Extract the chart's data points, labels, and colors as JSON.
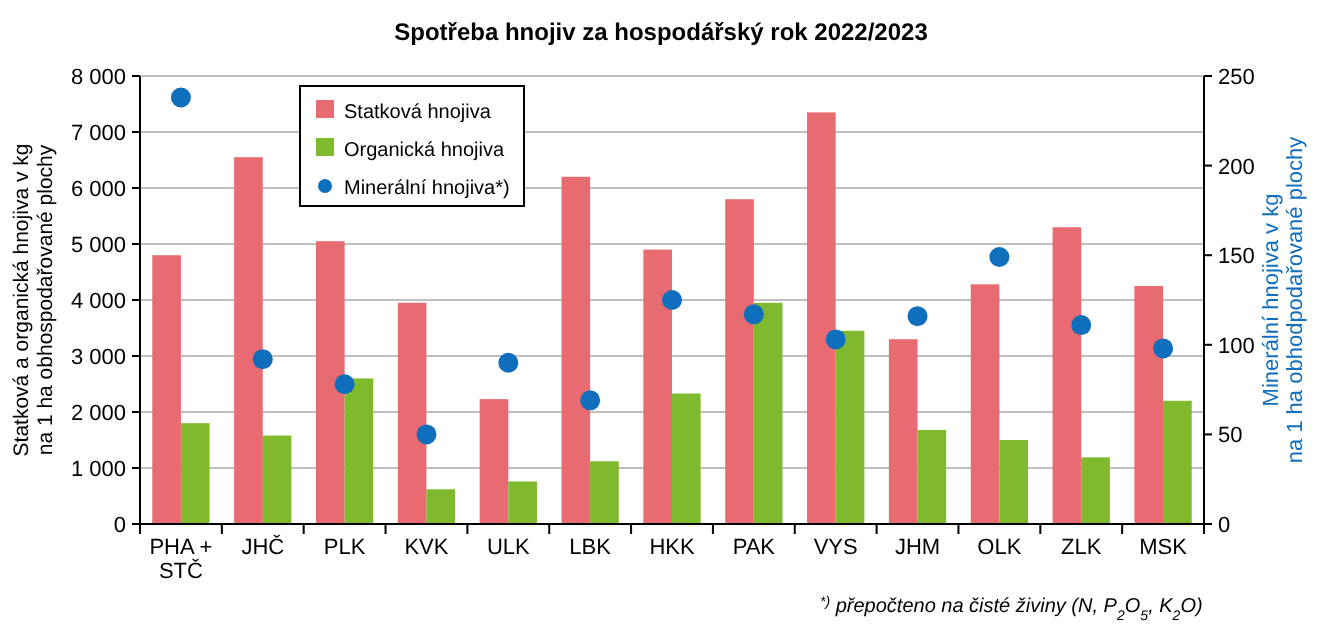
{
  "chart_data": {
    "type": "bar",
    "title": "Spotřeba hnojiv  za hospodářský rok 2022/2023",
    "ylabel": "Statková a organická hnojiva v kg\nna 1 ha obhospodařované plochy",
    "y2label": "Minerální hnojiva v kg\nna 1 ha obhodpodařované plochy",
    "categories": [
      "PHA +\nSTČ",
      "JHČ",
      "PLK",
      "KVK",
      "ULK",
      "LBK",
      "HKK",
      "PAK",
      "VYS",
      "JHM",
      "OLK",
      "ZLK",
      "MSK"
    ],
    "series": [
      {
        "name": "Statková hnojiva",
        "color": "#e96b72",
        "values": [
          4800,
          6550,
          5050,
          3950,
          2230,
          6200,
          4900,
          5800,
          7350,
          3300,
          4280,
          5300,
          4250
        ]
      },
      {
        "name": "Organická hnojiva",
        "color": "#7fba2e",
        "values": [
          1800,
          1580,
          2600,
          620,
          760,
          1120,
          2330,
          3950,
          3450,
          1680,
          1500,
          1190,
          2200
        ]
      },
      {
        "name": "Minerální hnojiva*)",
        "type": "scatter",
        "axis": "y2",
        "marker": "circle",
        "color": "#0f6fbd",
        "values": [
          238,
          92,
          78,
          50,
          90,
          69,
          125,
          117,
          103,
          116,
          149,
          111,
          98
        ]
      }
    ],
    "ylim": [
      0,
      8000
    ],
    "yticks": [
      0,
      {
        "value": 1000,
        "label": "1 000"
      },
      {
        "value": 2000,
        "label": "2 000"
      },
      {
        "value": 3000,
        "label": "3 000"
      },
      {
        "value": 4000,
        "label": "4 000"
      },
      {
        "value": 5000,
        "label": "5 000"
      },
      {
        "value": 6000,
        "label": "6 000"
      },
      {
        "value": 7000,
        "label": "7 000"
      },
      {
        "value": 8000,
        "label": "8 000"
      }
    ],
    "y2lim": [
      0,
      250
    ],
    "y2ticks": [
      0,
      50,
      100,
      150,
      200,
      250
    ],
    "grid": "y",
    "legend": "top",
    "annotations": [
      "$^{*)}$ přepočteno na čisté živiny (N, P$_{2}$O$_{5}$, K$_{2}$O)"
    ]
  }
}
